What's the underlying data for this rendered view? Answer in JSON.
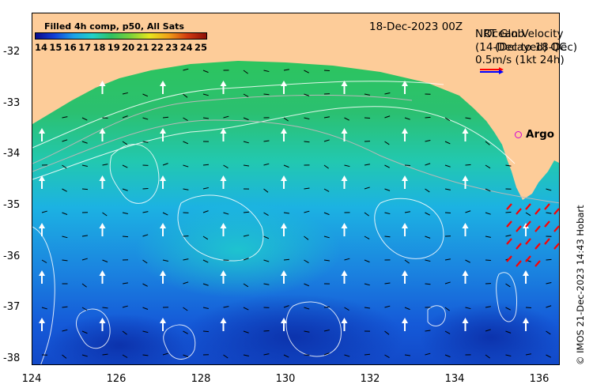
{
  "colorbar": {
    "title": "Filled 4h comp, p50, All Sats",
    "ticks": [
      "14",
      "15",
      "16",
      "17",
      "18",
      "19",
      "20",
      "21",
      "22",
      "23",
      "24",
      "25"
    ]
  },
  "date": "18-Dec-2023 00Z",
  "legend": {
    "title_a": "NRT Glob",
    "sub_a": "(14-Dec to 18-Dec)",
    "title_b": "Ocean Velocity",
    "sub_b": "(Delayed) QC",
    "scale": "0.5m/s (1kt 24h)",
    "arrow_colors": [
      "#ff0000",
      "#0000ff"
    ]
  },
  "argo": {
    "label": "Argo",
    "color": "#d400d4"
  },
  "credit": "© IMOS 21-Dec-2023 14:43 Hobart",
  "axes": {
    "x_ticks": [
      "124",
      "126",
      "128",
      "130",
      "132",
      "134",
      "136"
    ],
    "y_ticks": [
      "-32",
      "-33",
      "-34",
      "-35",
      "-36",
      "-37",
      "-38"
    ],
    "xlim": [
      124,
      136.5
    ],
    "ylim": [
      -38.1,
      -31.3
    ]
  },
  "colors": {
    "land": "#fdcc99",
    "warm": "#2cc25a",
    "cool": "#1a6fe0",
    "deep": "#0d3bb5"
  }
}
